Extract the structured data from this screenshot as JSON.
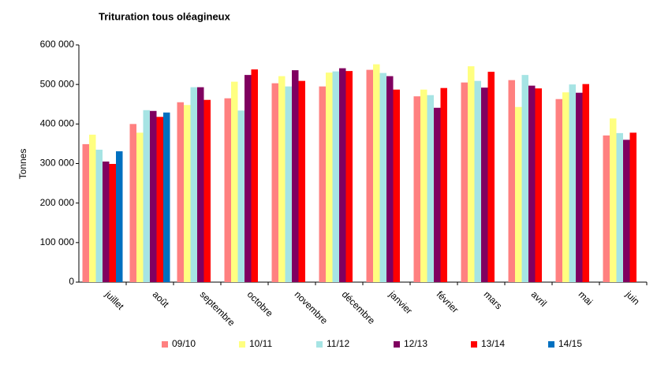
{
  "chart_data": {
    "type": "bar",
    "title": "Trituration tous oléagineux",
    "y_label": "Tonnes",
    "categories": [
      "juillet",
      "août",
      "septembre",
      "octobre",
      "novembre",
      "décembre",
      "janvier",
      "février",
      "mars",
      "avril",
      "mai",
      "juin"
    ],
    "series": [
      {
        "name": "09/10",
        "color": "#ff8080",
        "values": [
          349000,
          400000,
          455000,
          465000,
          503000,
          495000,
          537000,
          470000,
          505000,
          511000,
          463000,
          371000
        ]
      },
      {
        "name": "10/11",
        "color": "#ffff80",
        "values": [
          373000,
          378000,
          448000,
          507000,
          521000,
          530000,
          551000,
          487000,
          546000,
          443000,
          480000,
          414000
        ]
      },
      {
        "name": "11/12",
        "color": "#a6e4e4",
        "values": [
          335000,
          435000,
          493000,
          434000,
          495000,
          533000,
          529000,
          473000,
          509000,
          524000,
          500000,
          377000
        ]
      },
      {
        "name": "12/13",
        "color": "#800060",
        "values": [
          305000,
          433000,
          493000,
          524000,
          536000,
          541000,
          521000,
          441000,
          492000,
          497000,
          479000,
          360000
        ]
      },
      {
        "name": "13/14",
        "color": "#ff0000",
        "values": [
          299000,
          418000,
          461000,
          538000,
          509000,
          534000,
          487000,
          491000,
          532000,
          490000,
          501000,
          378000
        ]
      },
      {
        "name": "14/15",
        "color": "#0070c0",
        "values": [
          331000,
          429000,
          null,
          null,
          null,
          null,
          null,
          null,
          null,
          null,
          null,
          null
        ]
      }
    ],
    "ylim": [
      0,
      600000
    ],
    "yticks": [
      0,
      {
        "value": 100000,
        "label": "100 000"
      },
      {
        "value": 200000,
        "label": "200 000"
      },
      {
        "value": 300000,
        "label": "300 000"
      },
      {
        "value": 400000,
        "label": "400 000"
      },
      {
        "value": 500000,
        "label": "500 000"
      },
      {
        "value": 600000,
        "label": "600 000"
      }
    ],
    "grid": false,
    "legend": "bottom"
  }
}
